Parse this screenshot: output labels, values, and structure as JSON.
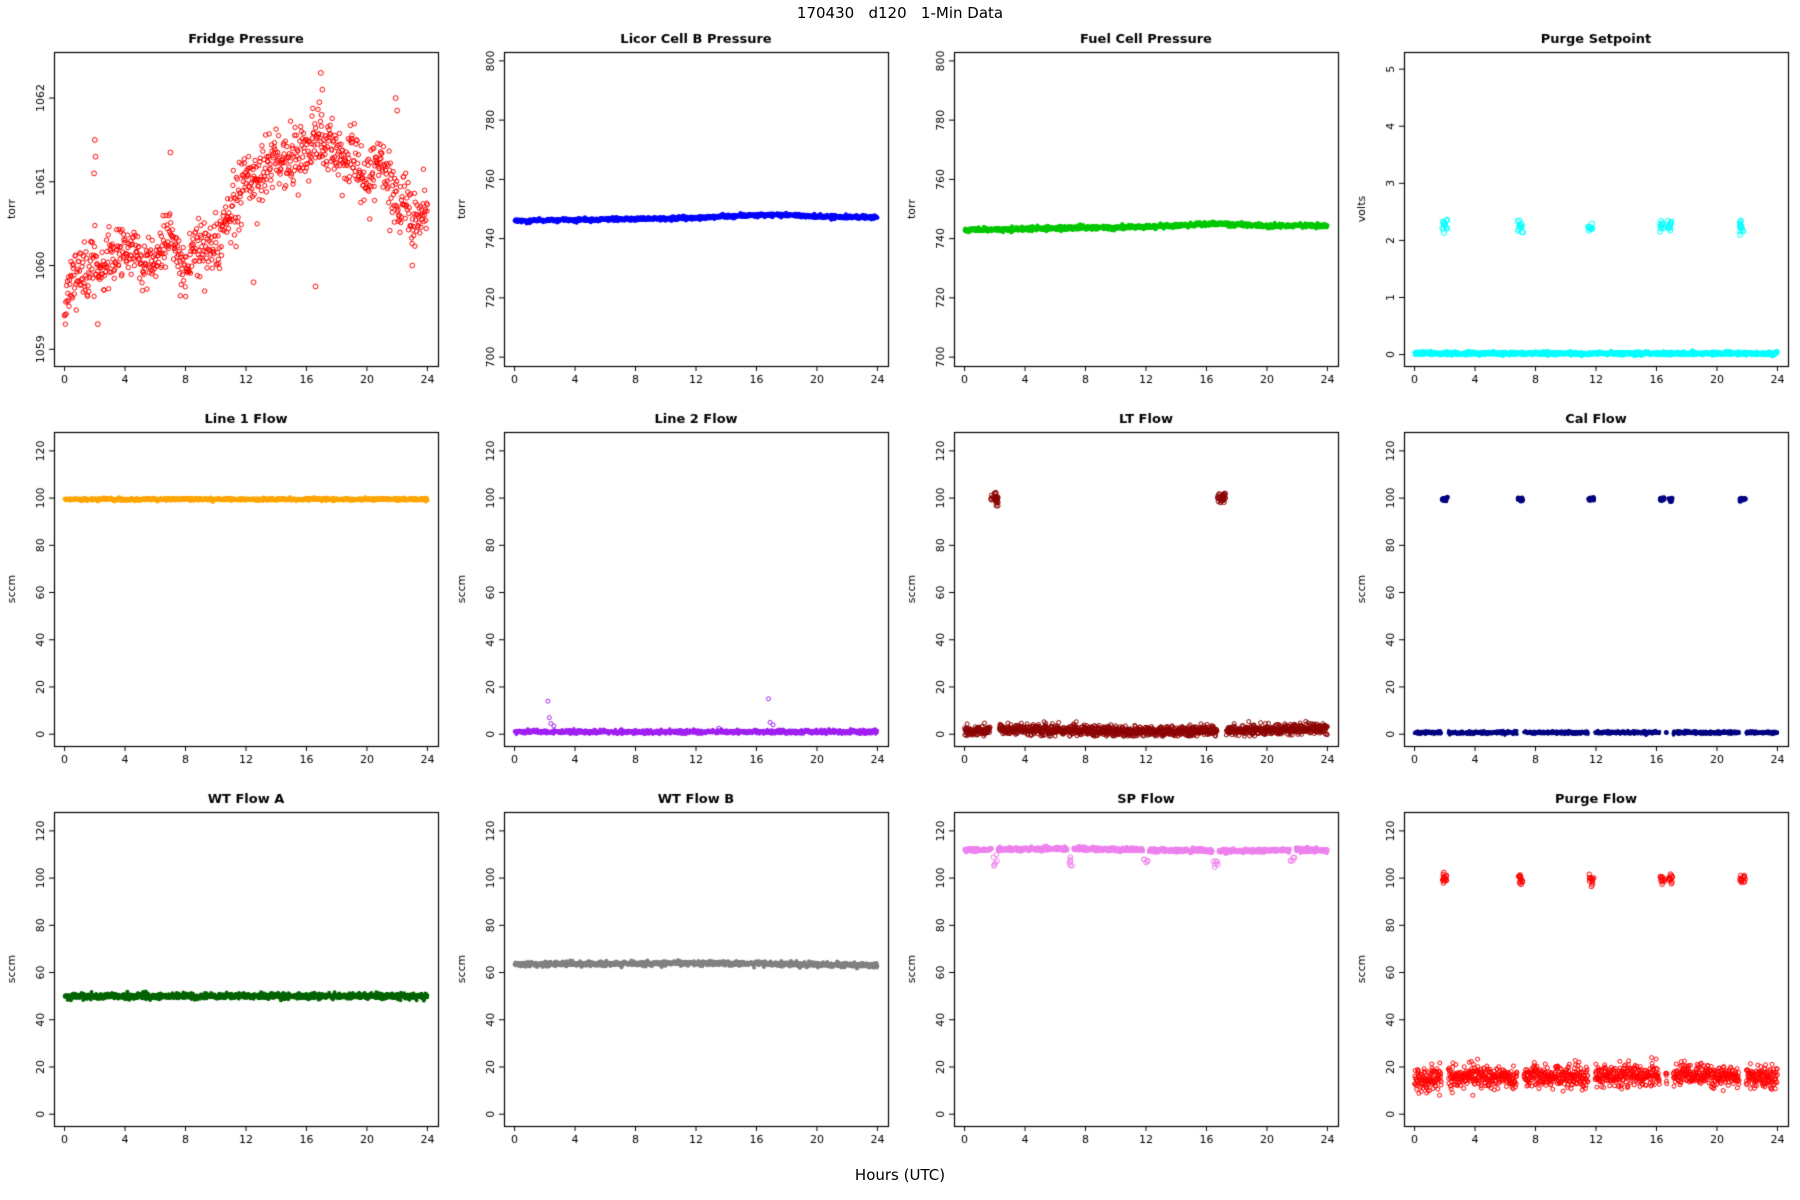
{
  "page": {
    "title": "170430   d120   1-Min Data",
    "xlabel": "Hours (UTC)"
  },
  "chart_data": [
    {
      "type": "scatter",
      "title": "Fridge Pressure",
      "ylabel": "torr",
      "xlim": [
        -0.7,
        24.7
      ],
      "xticks": [
        0,
        4,
        8,
        12,
        16,
        20,
        24
      ],
      "ylim": [
        1058.8,
        1062.55
      ],
      "yticks": [
        1059,
        1060,
        1061,
        1062
      ],
      "color": "#FF0000",
      "marker": "open",
      "marker_size": 2.2,
      "n": 900,
      "seed": 11,
      "noise": 0.17,
      "yclamp": [
        1059.2,
        1062.35
      ],
      "trend": [
        [
          0,
          1059.6
        ],
        [
          0.5,
          1059.8
        ],
        [
          1,
          1060.0
        ],
        [
          1.5,
          1059.9
        ],
        [
          2,
          1060.1
        ],
        [
          2.5,
          1059.9
        ],
        [
          3,
          1060.1
        ],
        [
          3.5,
          1060.2
        ],
        [
          4,
          1060.1
        ],
        [
          4.5,
          1060.2
        ],
        [
          5,
          1060.0
        ],
        [
          5.5,
          1060.1
        ],
        [
          6,
          1060.0
        ],
        [
          6.5,
          1060.3
        ],
        [
          7,
          1060.4
        ],
        [
          7.5,
          1060.1
        ],
        [
          8,
          1059.9
        ],
        [
          8.5,
          1060.2
        ],
        [
          9,
          1060.3
        ],
        [
          9.5,
          1060.2
        ],
        [
          10,
          1060.2
        ],
        [
          10.5,
          1060.4
        ],
        [
          11,
          1060.6
        ],
        [
          11.5,
          1060.8
        ],
        [
          12,
          1061.0
        ],
        [
          12.5,
          1061.1
        ],
        [
          13,
          1061.1
        ],
        [
          13.5,
          1061.2
        ],
        [
          14,
          1061.3
        ],
        [
          14.5,
          1061.2
        ],
        [
          15,
          1061.3
        ],
        [
          15.5,
          1061.3
        ],
        [
          16,
          1061.4
        ],
        [
          16.5,
          1061.5
        ],
        [
          17,
          1061.5
        ],
        [
          17.5,
          1061.4
        ],
        [
          18,
          1061.3
        ],
        [
          18.5,
          1061.2
        ],
        [
          19,
          1061.3
        ],
        [
          19.5,
          1061.1
        ],
        [
          20,
          1061.0
        ],
        [
          20.5,
          1061.2
        ],
        [
          21,
          1061.3
        ],
        [
          21.5,
          1061.0
        ],
        [
          22,
          1060.7
        ],
        [
          22.5,
          1060.8
        ],
        [
          23,
          1060.5
        ],
        [
          23.5,
          1060.6
        ],
        [
          24,
          1060.7
        ]
      ],
      "extras": [
        [
          2.0,
          1061.5
        ],
        [
          2.05,
          1061.3
        ],
        [
          1.95,
          1061.1
        ],
        [
          7.0,
          1061.35
        ],
        [
          16.95,
          1062.3
        ],
        [
          17.05,
          1062.1
        ],
        [
          16.85,
          1061.95
        ],
        [
          17.0,
          1061.8
        ],
        [
          21.9,
          1062.0
        ],
        [
          22.0,
          1061.85
        ],
        [
          12.5,
          1059.8
        ],
        [
          16.6,
          1059.75
        ],
        [
          2.2,
          1059.3
        ],
        [
          23.0,
          1060.0
        ]
      ]
    },
    {
      "type": "scatter",
      "title": "Licor Cell B Pressure",
      "ylabel": "torr",
      "xlim": [
        -0.7,
        24.7
      ],
      "xticks": [
        0,
        4,
        8,
        12,
        16,
        20,
        24
      ],
      "ylim": [
        697,
        803
      ],
      "yticks": [
        700,
        720,
        740,
        760,
        780,
        800
      ],
      "color": "#0000FF",
      "marker": "filled",
      "marker_size": 2.0,
      "n": 1440,
      "seed": 22,
      "noise": 0.3,
      "trend": [
        [
          0,
          746
        ],
        [
          6,
          746.5
        ],
        [
          12,
          747
        ],
        [
          16,
          748
        ],
        [
          18,
          748
        ],
        [
          21,
          747.3
        ],
        [
          24,
          747.3
        ]
      ]
    },
    {
      "type": "scatter",
      "title": "Fuel Cell Pressure",
      "ylabel": "torr",
      "xlim": [
        -0.7,
        24.7
      ],
      "xticks": [
        0,
        4,
        8,
        12,
        16,
        20,
        24
      ],
      "ylim": [
        697,
        803
      ],
      "yticks": [
        700,
        720,
        740,
        760,
        780,
        800
      ],
      "color": "#00C800",
      "marker": "filled",
      "marker_size": 2.0,
      "n": 1440,
      "seed": 33,
      "noise": 0.35,
      "trend": [
        [
          0,
          742.8
        ],
        [
          6,
          743.5
        ],
        [
          12,
          744
        ],
        [
          16,
          744.8
        ],
        [
          17,
          745
        ],
        [
          20,
          744.2
        ],
        [
          22,
          744.5
        ],
        [
          24,
          744.2
        ]
      ]
    },
    {
      "type": "scatter",
      "title": "Purge Setpoint",
      "ylabel": "volts",
      "xlim": [
        -0.7,
        24.7
      ],
      "xticks": [
        0,
        4,
        8,
        12,
        16,
        20,
        24
      ],
      "ylim": [
        -0.2,
        5.3
      ],
      "yticks": [
        0,
        1,
        2,
        3,
        4,
        5
      ],
      "color": "#00FFFF",
      "marker": "filled",
      "marker_size": 2.2,
      "n": 1440,
      "seed": 44,
      "noise": 0.015,
      "trend": [
        [
          0,
          0.02
        ],
        [
          24,
          0.02
        ]
      ],
      "event_marker": "open",
      "event_size": 2.6,
      "gap_events": false,
      "events": [
        {
          "x": 2.0,
          "w": 0.35,
          "y": 2.25,
          "sd": 0.06,
          "n": 12
        },
        {
          "x": 7.0,
          "w": 0.35,
          "y": 2.25,
          "sd": 0.06,
          "n": 12
        },
        {
          "x": 11.6,
          "w": 0.35,
          "y": 2.22,
          "sd": 0.05,
          "n": 10
        },
        {
          "x": 16.3,
          "w": 0.3,
          "y": 2.22,
          "sd": 0.06,
          "n": 10
        },
        {
          "x": 16.85,
          "w": 0.3,
          "y": 2.25,
          "sd": 0.06,
          "n": 10
        },
        {
          "x": 21.6,
          "w": 0.35,
          "y": 2.25,
          "sd": 0.06,
          "n": 12
        }
      ]
    },
    {
      "type": "scatter",
      "title": "Line 1 Flow",
      "ylabel": "sccm",
      "xlim": [
        -0.7,
        24.7
      ],
      "xticks": [
        0,
        4,
        8,
        12,
        16,
        20,
        24
      ],
      "ylim": [
        -5,
        128
      ],
      "yticks": [
        0,
        20,
        40,
        60,
        80,
        100,
        120
      ],
      "color": "#FFA500",
      "marker": "filled",
      "marker_size": 2.0,
      "n": 1440,
      "seed": 55,
      "noise": 0.3,
      "trend": [
        [
          0,
          99.5
        ],
        [
          24,
          99.5
        ]
      ]
    },
    {
      "type": "scatter",
      "title": "Line 2 Flow",
      "ylabel": "sccm",
      "xlim": [
        -0.7,
        24.7
      ],
      "xticks": [
        0,
        4,
        8,
        12,
        16,
        20,
        24
      ],
      "ylim": [
        -5,
        128
      ],
      "yticks": [
        0,
        20,
        40,
        60,
        80,
        100,
        120
      ],
      "color": "#A020F0",
      "marker": "filled",
      "marker_size": 1.8,
      "n": 1440,
      "seed": 66,
      "noise": 0.45,
      "yclamp": [
        0,
        3
      ],
      "trend": [
        [
          0,
          1.0
        ],
        [
          24,
          1.0
        ]
      ],
      "extras": [
        [
          2.2,
          14
        ],
        [
          2.3,
          7
        ],
        [
          2.4,
          4.5
        ],
        [
          2.6,
          3.5
        ],
        [
          13.5,
          2.5
        ],
        [
          16.8,
          15
        ],
        [
          16.9,
          5
        ],
        [
          17.1,
          4
        ]
      ]
    },
    {
      "type": "scatter",
      "title": "LT Flow",
      "ylabel": "sccm",
      "xlim": [
        -0.7,
        24.7
      ],
      "xticks": [
        0,
        4,
        8,
        12,
        16,
        20,
        24
      ],
      "ylim": [
        -5,
        128
      ],
      "yticks": [
        0,
        20,
        40,
        60,
        80,
        100,
        120
      ],
      "color": "#8B0000",
      "marker": "open",
      "marker_size": 2.0,
      "n": 1440,
      "seed": 77,
      "noise": 1.1,
      "yclamp": [
        -0.8,
        6
      ],
      "trend": [
        [
          0,
          1.5
        ],
        [
          2,
          2
        ],
        [
          4,
          2
        ],
        [
          8,
          1.5
        ],
        [
          12,
          1
        ],
        [
          16,
          1.5
        ],
        [
          20,
          2
        ],
        [
          24,
          2.5
        ]
      ],
      "event_marker": "open",
      "event_size": 2.3,
      "gap_events": true,
      "events": [
        {
          "x": 2.0,
          "w": 0.5,
          "y": 100,
          "sd": 1.3,
          "n": 30
        },
        {
          "x": 17.0,
          "w": 0.5,
          "y": 100,
          "sd": 1.3,
          "n": 30
        }
      ]
    },
    {
      "type": "scatter",
      "title": "Cal Flow",
      "ylabel": "sccm",
      "xlim": [
        -0.7,
        24.7
      ],
      "xticks": [
        0,
        4,
        8,
        12,
        16,
        20,
        24
      ],
      "ylim": [
        -5,
        128
      ],
      "yticks": [
        0,
        20,
        40,
        60,
        80,
        100,
        120
      ],
      "color": "#000080",
      "marker": "filled",
      "marker_size": 1.8,
      "n": 1440,
      "seed": 88,
      "noise": 0.35,
      "trend": [
        [
          0,
          0.7
        ],
        [
          24,
          0.7
        ]
      ],
      "event_marker": "filled",
      "event_size": 2.5,
      "gap_events": true,
      "events": [
        {
          "x": 2.0,
          "w": 0.35,
          "y": 99.5,
          "sd": 0.4,
          "n": 14
        },
        {
          "x": 7.0,
          "w": 0.35,
          "y": 99.5,
          "sd": 0.4,
          "n": 14
        },
        {
          "x": 11.7,
          "w": 0.35,
          "y": 99.5,
          "sd": 0.4,
          "n": 12
        },
        {
          "x": 16.4,
          "w": 0.3,
          "y": 99.5,
          "sd": 0.4,
          "n": 10
        },
        {
          "x": 16.9,
          "w": 0.3,
          "y": 99.5,
          "sd": 0.4,
          "n": 10
        },
        {
          "x": 21.7,
          "w": 0.35,
          "y": 99.5,
          "sd": 0.4,
          "n": 14
        }
      ]
    },
    {
      "type": "scatter",
      "title": "WT Flow A",
      "ylabel": "sccm",
      "xlim": [
        -0.7,
        24.7
      ],
      "xticks": [
        0,
        4,
        8,
        12,
        16,
        20,
        24
      ],
      "ylim": [
        -5,
        128
      ],
      "yticks": [
        0,
        20,
        40,
        60,
        80,
        100,
        120
      ],
      "color": "#006400",
      "marker": "filled",
      "marker_size": 1.9,
      "n": 1440,
      "seed": 99,
      "noise": 0.6,
      "trend": [
        [
          0,
          50
        ],
        [
          24,
          50
        ]
      ]
    },
    {
      "type": "scatter",
      "title": "WT Flow B",
      "ylabel": "sccm",
      "xlim": [
        -0.7,
        24.7
      ],
      "xticks": [
        0,
        4,
        8,
        12,
        16,
        20,
        24
      ],
      "ylim": [
        -5,
        128
      ],
      "yticks": [
        0,
        20,
        40,
        60,
        80,
        100,
        120
      ],
      "color": "#808080",
      "marker": "filled",
      "marker_size": 1.9,
      "n": 1440,
      "seed": 110,
      "noise": 0.5,
      "trend": [
        [
          0,
          63.5
        ],
        [
          12,
          64
        ],
        [
          24,
          63.2
        ]
      ]
    },
    {
      "type": "scatter",
      "title": "SP Flow",
      "ylabel": "sccm",
      "xlim": [
        -0.7,
        24.7
      ],
      "xticks": [
        0,
        4,
        8,
        12,
        16,
        20,
        24
      ],
      "ylim": [
        -5,
        128
      ],
      "yticks": [
        0,
        20,
        40,
        60,
        80,
        100,
        120
      ],
      "color": "#EE82EE",
      "marker": "filled",
      "marker_size": 2.2,
      "n": 1440,
      "seed": 121,
      "noise": 0.4,
      "trend": [
        [
          0,
          112
        ],
        [
          6,
          112.5
        ],
        [
          12,
          112
        ],
        [
          18,
          111.5
        ],
        [
          22,
          112
        ],
        [
          24,
          111.8
        ]
      ],
      "event_marker": "open",
      "event_size": 2.4,
      "gap_events": true,
      "events": [
        {
          "x": 2.0,
          "w": 0.3,
          "y": 107,
          "sd": 1.2,
          "n": 6
        },
        {
          "x": 7.0,
          "w": 0.3,
          "y": 107,
          "sd": 1.2,
          "n": 6
        },
        {
          "x": 12.0,
          "w": 0.3,
          "y": 107.5,
          "sd": 1.0,
          "n": 5
        },
        {
          "x": 16.6,
          "w": 0.3,
          "y": 107,
          "sd": 1.2,
          "n": 6
        },
        {
          "x": 21.7,
          "w": 0.3,
          "y": 107.5,
          "sd": 1.0,
          "n": 5
        }
      ]
    },
    {
      "type": "scatter",
      "title": "Purge Flow",
      "ylabel": "sccm",
      "xlim": [
        -0.7,
        24.7
      ],
      "xticks": [
        0,
        4,
        8,
        12,
        16,
        20,
        24
      ],
      "ylim": [
        -5,
        128
      ],
      "yticks": [
        0,
        20,
        40,
        60,
        80,
        100,
        120
      ],
      "color": "#FF0000",
      "marker": "open",
      "marker_size": 2.0,
      "n": 1440,
      "seed": 132,
      "noise": 2.4,
      "yclamp": [
        8,
        30
      ],
      "trend": [
        [
          0,
          15
        ],
        [
          4,
          16
        ],
        [
          8,
          16
        ],
        [
          12,
          16
        ],
        [
          16,
          17
        ],
        [
          20,
          16
        ],
        [
          24,
          16
        ]
      ],
      "event_marker": "open",
      "event_size": 2.3,
      "gap_events": true,
      "events": [
        {
          "x": 2.0,
          "w": 0.35,
          "y": 99.5,
          "sd": 1.0,
          "n": 16
        },
        {
          "x": 7.0,
          "w": 0.35,
          "y": 99.5,
          "sd": 1.0,
          "n": 16
        },
        {
          "x": 11.7,
          "w": 0.35,
          "y": 99.5,
          "sd": 1.0,
          "n": 14
        },
        {
          "x": 16.4,
          "w": 0.3,
          "y": 99.5,
          "sd": 1.0,
          "n": 12
        },
        {
          "x": 16.9,
          "w": 0.3,
          "y": 99.5,
          "sd": 1.0,
          "n": 12
        },
        {
          "x": 21.7,
          "w": 0.35,
          "y": 99.5,
          "sd": 1.0,
          "n": 16
        }
      ]
    }
  ]
}
